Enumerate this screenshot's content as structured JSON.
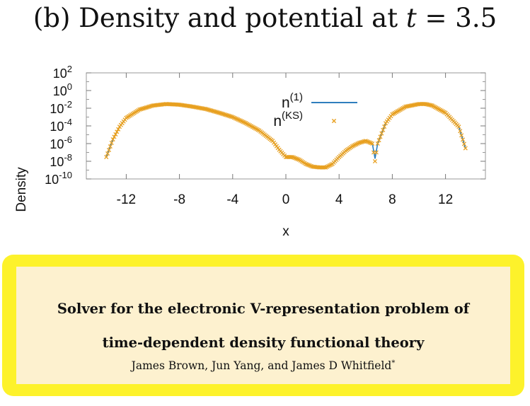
{
  "figure": {
    "title_prefix": "(b) Density and potential at ",
    "title_var": "t",
    "title_eq": " = 3.5"
  },
  "chart_data": {
    "type": "line",
    "xlabel": "x",
    "ylabel": "Density",
    "yscale": "log",
    "xlim": [
      -15,
      15
    ],
    "ylim": [
      1e-10,
      100
    ],
    "x_ticks": [
      -12,
      -8,
      -4,
      0,
      4,
      8,
      12
    ],
    "y_ticks": [
      {
        "base": "10",
        "exp": "2",
        "value": 100
      },
      {
        "base": "10",
        "exp": "0",
        "value": 1
      },
      {
        "base": "10",
        "exp": "-2",
        "value": 0.01
      },
      {
        "base": "10",
        "exp": "-4",
        "value": 0.0001
      },
      {
        "base": "10",
        "exp": "-6",
        "value": 1e-06
      },
      {
        "base": "10",
        "exp": "-8",
        "value": 1e-08
      },
      {
        "base": "10",
        "exp": "-10",
        "value": 1e-10
      }
    ],
    "legend_position": "top-right",
    "series": [
      {
        "name": "n",
        "sup": "(1)",
        "style": "line",
        "color": "#2f7ebd",
        "x": [
          -13.5,
          -13,
          -12.5,
          -12,
          -11,
          -10,
          -9,
          -8,
          -7,
          -6,
          -5,
          -4,
          -3,
          -2,
          -1,
          -0.5,
          0,
          0.5,
          1,
          1.5,
          2,
          2.5,
          3,
          3.5,
          4,
          4.5,
          5,
          5.5,
          6,
          6.5,
          6.7,
          6.9,
          7.5,
          8,
          9,
          10,
          10.5,
          11,
          12,
          13,
          13.5
        ],
        "y": [
          3e-08,
          3e-06,
          8e-05,
          0.0008,
          0.007,
          0.02,
          0.03,
          0.025,
          0.015,
          0.008,
          0.003,
          0.001,
          0.0002,
          3e-05,
          2e-06,
          2e-07,
          3e-08,
          3e-08,
          1.5e-08,
          5e-09,
          2.5e-09,
          2e-09,
          2e-09,
          5e-09,
          3e-08,
          1.5e-07,
          5e-07,
          1.2e-06,
          2e-06,
          1e-06,
          2e-08,
          1e-06,
          0.0002,
          0.002,
          0.015,
          0.03,
          0.03,
          0.02,
          0.003,
          8e-05,
          3e-07
        ]
      },
      {
        "name": "n",
        "sup": "(KS)",
        "style": "markers",
        "marker": "x",
        "color": "#e8a020",
        "x": [
          -13.5,
          -13,
          -12.5,
          -12,
          -11,
          -10,
          -9,
          -8,
          -7,
          -6,
          -5,
          -4,
          -3,
          -2,
          -1,
          -0.5,
          0,
          0.5,
          1,
          1.5,
          2,
          2.5,
          3,
          3.5,
          4,
          4.5,
          5,
          5.5,
          6,
          6.5,
          6.7,
          6.9,
          7.5,
          8,
          9,
          10,
          10.5,
          11,
          12,
          13,
          13.5
        ],
        "y": [
          3e-08,
          3e-06,
          8e-05,
          0.0008,
          0.007,
          0.02,
          0.03,
          0.025,
          0.015,
          0.008,
          0.003,
          0.001,
          0.0002,
          3e-05,
          2e-06,
          2e-07,
          3e-08,
          3e-08,
          1.5e-08,
          5e-09,
          2.5e-09,
          2e-09,
          2e-09,
          5e-09,
          3e-08,
          1.5e-07,
          5e-07,
          1.2e-06,
          2e-06,
          1e-06,
          1e-08,
          1e-06,
          0.0002,
          0.002,
          0.015,
          0.03,
          0.03,
          0.02,
          0.003,
          8e-05,
          3e-07
        ]
      }
    ]
  },
  "paper": {
    "title_line1": "Solver for the electronic V-representation problem of",
    "title_line2": "time-dependent density functional theory",
    "authors": "James Brown, Jun Yang, and James D Whitfield",
    "author_mark": "*"
  }
}
